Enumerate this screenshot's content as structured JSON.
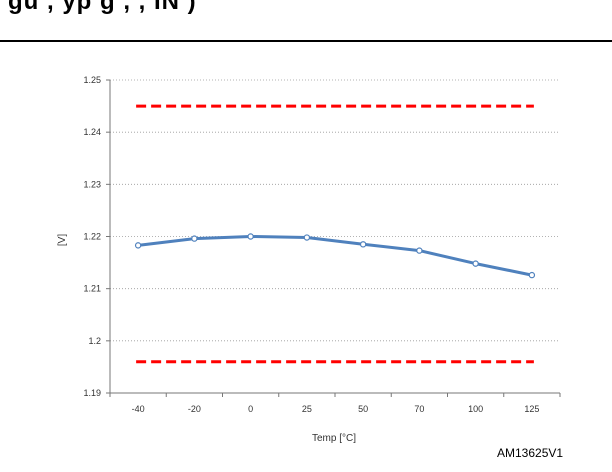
{
  "header": {
    "fragment_text": "gu        , yp                 g                      ,   ,  IN         )",
    "note": ""
  },
  "figure_id": "AM13625V1",
  "chart_data": {
    "type": "line",
    "categories": [
      "-40",
      "-20",
      "0",
      "25",
      "50",
      "70",
      "100",
      "125"
    ],
    "series": [
      {
        "name": "",
        "values": [
          1.2183,
          1.2196,
          1.22,
          1.2198,
          1.2185,
          1.2173,
          1.2148,
          1.2126
        ],
        "color": "#4f81bd",
        "style": "solid-markers"
      },
      {
        "name": "",
        "values": [
          1.245,
          1.245,
          1.245,
          1.245,
          1.245,
          1.245,
          1.245,
          1.245
        ],
        "color": "#ff0000",
        "style": "dashed"
      },
      {
        "name": "",
        "values": [
          1.196,
          1.196,
          1.196,
          1.196,
          1.196,
          1.196,
          1.196,
          1.196
        ],
        "color": "#ff0000",
        "style": "dashed"
      }
    ],
    "title": "",
    "xlabel": "Temp [°C]",
    "ylabel": "[V]",
    "ylim": [
      1.19,
      1.25
    ],
    "yticks": [
      "1.19",
      "1.2",
      "1.21",
      "1.22",
      "1.23",
      "1.24",
      "1.25"
    ],
    "grid": "horizontal dotted"
  }
}
